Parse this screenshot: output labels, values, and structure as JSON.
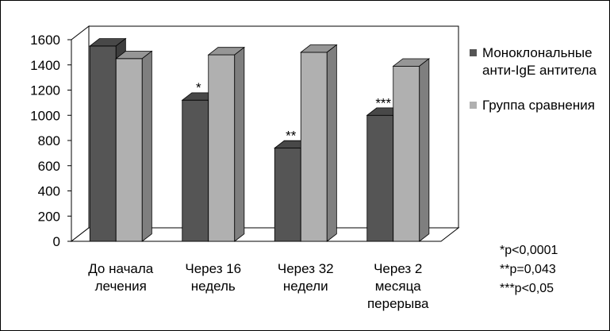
{
  "chart_data": {
    "type": "bar",
    "style": "3d-clustered-column",
    "categories": [
      "До начала\nлечения",
      "Через 16\nнедель",
      "Через 32\nнедели",
      "Через 2\nмесяца\nперерыва"
    ],
    "series": [
      {
        "name": "Моноклональные анти-IgE антитела",
        "values": [
          1550,
          1120,
          740,
          1000
        ],
        "annotations": [
          "",
          "*",
          "**",
          "***"
        ],
        "color": "#555555"
      },
      {
        "name": "Группа сравнения",
        "values": [
          1450,
          1480,
          1500,
          1390
        ],
        "color": "#b0b0b0"
      }
    ],
    "yticks": [
      0,
      200,
      400,
      600,
      800,
      1000,
      1200,
      1400,
      1600
    ],
    "ylim": [
      0,
      1600
    ],
    "title": "",
    "xlabel": "",
    "ylabel": "",
    "legend": "right",
    "grid": false
  },
  "legend": {
    "items": [
      {
        "label_line1": "Моноклональные",
        "label_line2": "анти-IgE антитела",
        "color": "#555555"
      },
      {
        "label_line1": "Группа сравнения",
        "color": "#b0b0b0"
      }
    ]
  },
  "notes": [
    "*p<0,0001",
    "**p=0,043",
    "***p<0,05"
  ]
}
